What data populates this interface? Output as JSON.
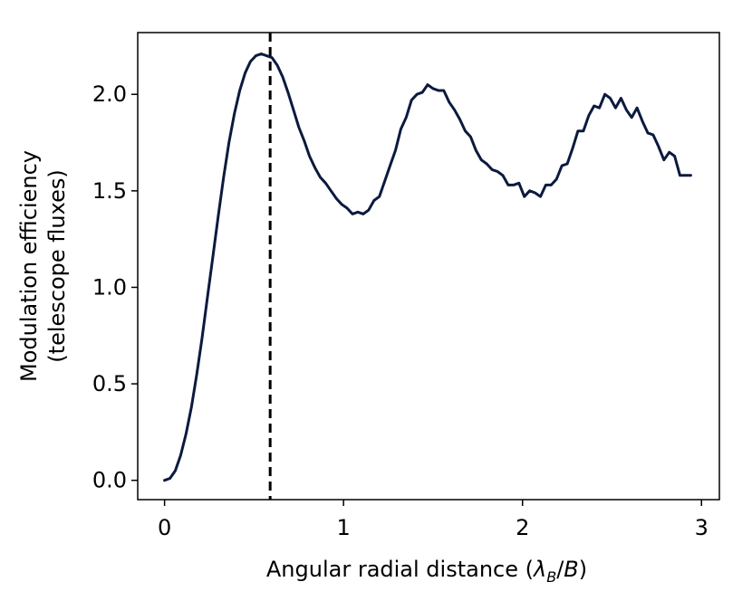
{
  "chart_data": {
    "type": "line",
    "xlabel": "Angular radial distance",
    "xlabel_unit": {
      "open": " (",
      "symbol": "λ",
      "sub": "B",
      "slash": "/",
      "den": "B",
      "close": ")"
    },
    "ylabel_lines": [
      "Modulation efficiency",
      "(telescope fluxes)"
    ],
    "xlim": [
      -0.15,
      3.1
    ],
    "ylim": [
      -0.1,
      2.32
    ],
    "xticks": [
      0,
      1,
      2,
      3
    ],
    "xtick_labels": [
      "0",
      "1",
      "2",
      "3"
    ],
    "yticks": [
      0.0,
      0.5,
      1.0,
      1.5,
      2.0
    ],
    "ytick_labels": [
      "0.0",
      "0.5",
      "1.0",
      "1.5",
      "2.0"
    ],
    "grid": false,
    "legend": false,
    "line_color": "#0b1a3e",
    "vertical_line": {
      "x": 0.59,
      "style": "dashed",
      "color": "#000000"
    },
    "series": [
      {
        "x": [
          0.0,
          0.03,
          0.06,
          0.09,
          0.12,
          0.15,
          0.18,
          0.21,
          0.24,
          0.27,
          0.3,
          0.33,
          0.36,
          0.39,
          0.42,
          0.45,
          0.48,
          0.51,
          0.54,
          0.57,
          0.6,
          0.63,
          0.66,
          0.69,
          0.72,
          0.75,
          0.78,
          0.81,
          0.84,
          0.87,
          0.9,
          0.93,
          0.96,
          0.99,
          1.02,
          1.05,
          1.08,
          1.11,
          1.14,
          1.17,
          1.2,
          1.23,
          1.26,
          1.29,
          1.32,
          1.35,
          1.38,
          1.41,
          1.44,
          1.47,
          1.5,
          1.53,
          1.56,
          1.59,
          1.62,
          1.65,
          1.68,
          1.71,
          1.74,
          1.77,
          1.8,
          1.83,
          1.86,
          1.89,
          1.92,
          1.95,
          1.98,
          2.01,
          2.04,
          2.07,
          2.1,
          2.13,
          2.16,
          2.19,
          2.22,
          2.25,
          2.28,
          2.31,
          2.34,
          2.37,
          2.4,
          2.43,
          2.46,
          2.49,
          2.52,
          2.55,
          2.58,
          2.61,
          2.64,
          2.67,
          2.7,
          2.73,
          2.76,
          2.79,
          2.82,
          2.85,
          2.88,
          2.91,
          2.94
        ],
        "y": [
          0.0,
          0.01,
          0.05,
          0.13,
          0.24,
          0.38,
          0.55,
          0.74,
          0.95,
          1.16,
          1.37,
          1.57,
          1.75,
          1.9,
          2.02,
          2.11,
          2.17,
          2.2,
          2.21,
          2.2,
          2.19,
          2.15,
          2.09,
          2.01,
          1.92,
          1.83,
          1.76,
          1.68,
          1.62,
          1.57,
          1.54,
          1.5,
          1.46,
          1.43,
          1.41,
          1.38,
          1.39,
          1.38,
          1.4,
          1.45,
          1.47,
          1.55,
          1.63,
          1.71,
          1.82,
          1.88,
          1.97,
          2.0,
          2.01,
          2.05,
          2.03,
          2.02,
          2.02,
          1.96,
          1.92,
          1.87,
          1.81,
          1.78,
          1.71,
          1.66,
          1.64,
          1.61,
          1.6,
          1.58,
          1.53,
          1.53,
          1.54,
          1.47,
          1.5,
          1.49,
          1.47,
          1.53,
          1.53,
          1.56,
          1.63,
          1.64,
          1.72,
          1.81,
          1.81,
          1.89,
          1.94,
          1.93,
          2.0,
          1.98,
          1.93,
          1.98,
          1.92,
          1.88,
          1.93,
          1.86,
          1.8,
          1.79,
          1.73,
          1.66,
          1.7,
          1.68,
          1.58,
          1.58,
          1.58
        ]
      }
    ]
  }
}
